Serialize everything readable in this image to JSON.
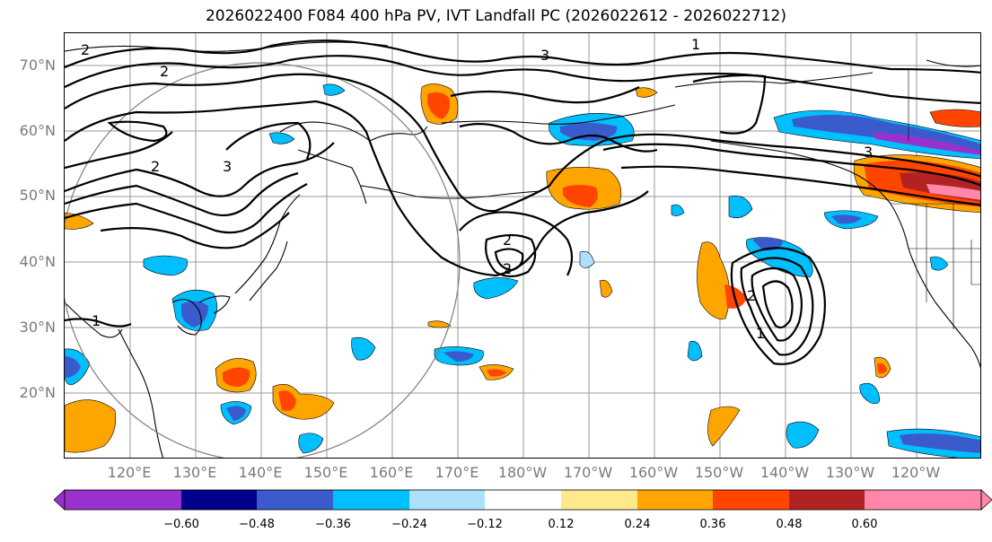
{
  "title": "2026022400 F084 400 hPa PV, IVT Landfall PC (2026022612 - 2026022712)",
  "lat_labels": [
    "70°N",
    "60°N",
    "50°N",
    "40°N",
    "30°N",
    "20°N"
  ],
  "lon_labels": [
    "120°E",
    "130°E",
    "140°E",
    "150°E",
    "160°E",
    "170°E",
    "180°W",
    "170°W",
    "160°W",
    "150°W",
    "140°W",
    "130°W",
    "120°W"
  ],
  "colorbar": {
    "ticks": [
      "−0.60",
      "−0.48",
      "−0.36",
      "−0.24",
      "−0.12",
      "0.12",
      "0.24",
      "0.36",
      "0.48",
      "0.60"
    ],
    "colors": [
      "#9932CC",
      "#00008B",
      "#3A5BCC",
      "#00BFFF",
      "#ADDFFF",
      "#FFFFFF",
      "#FFE98A",
      "#FFA500",
      "#FF4500",
      "#B22222",
      "#FF88AA"
    ]
  },
  "contour_labels": [
    "1",
    "2",
    "3"
  ]
}
